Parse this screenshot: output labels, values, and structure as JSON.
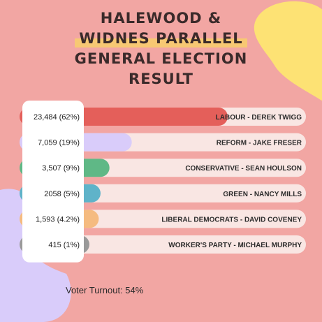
{
  "title_lines": [
    "HALEWOOD &",
    "WIDNES PARALLEL",
    "GENERAL ELECTION",
    "RESULT"
  ],
  "chart_data": {
    "type": "bar",
    "orientation": "horizontal",
    "categories": [
      "LABOUR - DEREK TWIGG",
      "REFORM -  JAKE FRESER",
      "CONSERVATIVE - SEAN HOULSON",
      "GREEN - NANCY MILLS",
      "LIBERAL DEMOCRATS  - DAVID COVENEY",
      "WORKER'S PARTY - MICHAEL MURPHY"
    ],
    "values": [
      23484,
      7059,
      3507,
      2058,
      1593,
      415
    ],
    "value_labels": [
      "23,484 (62%)",
      "7,059 (19%)",
      "3,507 (9%)",
      "2058 (5%)",
      "1,593 (4.2%)",
      "415 (1%)"
    ],
    "bar_fill": [
      0.62,
      0.19,
      0.09,
      0.05,
      0.042,
      0.01
    ],
    "colors": [
      "#e45f5a",
      "#d9ccfa",
      "#5fb886",
      "#5fb3c9",
      "#f5bb80",
      "#9a9a9a"
    ]
  },
  "footer": {
    "turnout": "Voter Turnout: 54%"
  },
  "theme": {
    "background": "#f2a6a3",
    "blob_yellow": "#fde274",
    "blob_lavender": "#d9ccfa",
    "track": "#f9e6e3",
    "label_panel": "#ffffff"
  }
}
